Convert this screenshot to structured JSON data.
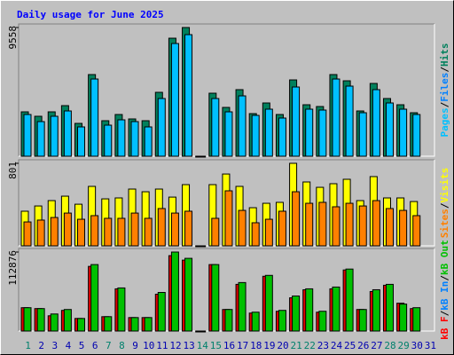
{
  "title": "Daily usage for June 2025",
  "chart_data": [
    {
      "type": "bar",
      "ylim": [
        0,
        9558
      ],
      "yticks": [
        9558
      ],
      "legend": [
        {
          "name": "Pages",
          "color": "#00c0ff"
        },
        {
          "name": "Files",
          "color": "#0080ff"
        },
        {
          "name": "Hits",
          "color": "#00805c"
        }
      ],
      "legend_separator": "/",
      "series": [
        {
          "color": "#00805c",
          "values": [
            3295,
            2966,
            3295,
            3756,
            2438,
            6063,
            2636,
            3097,
            2768,
            2636,
            4745,
            8765,
            9558,
            0,
            4679,
            3624,
            4943,
            3163,
            3954,
            3097,
            5667,
            3822,
            3690,
            6063,
            5601,
            3361,
            5404,
            4284,
            3822,
            3229,
            null
          ]
        },
        {
          "color": "#00c0ff",
          "values": [
            3097,
            2570,
            2966,
            3361,
            2175,
            5733,
            2306,
            2702,
            2570,
            2175,
            4284,
            8370,
            9028,
            0,
            4284,
            3295,
            4481,
            3031,
            3493,
            2834,
            5140,
            3493,
            3427,
            5733,
            5206,
            3229,
            4943,
            3954,
            3493,
            3097,
            null
          ]
        }
      ]
    },
    {
      "type": "bar",
      "ylim": [
        0,
        801
      ],
      "yticks": [
        801
      ],
      "legend": [
        {
          "name": "Sites",
          "color": "#ff8000"
        },
        {
          "name": "Visits",
          "color": "#ffff00"
        }
      ],
      "legend_separator": "/",
      "series": [
        {
          "color": "#ffff00",
          "values": [
            336,
            387,
            439,
            482,
            404,
            577,
            456,
            465,
            551,
            525,
            551,
            473,
            594,
            0,
            594,
            697,
            577,
            370,
            413,
            422,
            801,
            620,
            568,
            603,
            646,
            439,
            672,
            465,
            465,
            430,
            null
          ]
        },
        {
          "color": "#ff8000",
          "values": [
            232,
            250,
            275,
            318,
            258,
            293,
            267,
            267,
            318,
            267,
            362,
            318,
            336,
            0,
            267,
            534,
            344,
            224,
            258,
            336,
            525,
            413,
            422,
            379,
            413,
            387,
            439,
            362,
            344,
            293,
            null
          ]
        }
      ]
    },
    {
      "type": "bar",
      "ylim": [
        0,
        112876
      ],
      "yticks": [
        112876
      ],
      "legend": [
        {
          "name": "kB F",
          "color": "#ff0000"
        },
        {
          "name": "kB In",
          "color": "#0080ff"
        },
        {
          "name": "kB Out",
          "color": "#00c000"
        }
      ],
      "legend_separator": "/",
      "series": [
        {
          "color": "#e00000",
          "values": [
            33358,
            32075,
            21811,
            29509,
            17962,
            92406,
            20528,
            60300,
            19245,
            19245,
            52603,
            107744,
            101329,
            0,
            94972,
            30792,
            66715,
            25660,
            78262,
            28226,
            47471,
            58990,
            26943,
            60300,
            87274,
            30792,
            56452,
            65432,
            39773,
            32075,
            null
          ]
        },
        {
          "color": "#00c000",
          "values": [
            33358,
            32075,
            24377,
            30792,
            17962,
            94972,
            20528,
            61583,
            19245,
            19245,
            55169,
            112876,
            103895,
            0,
            94972,
            30792,
            69281,
            26943,
            79545,
            29509,
            50037,
            60300,
            28226,
            62866,
            88557,
            30792,
            59017,
            66715,
            38490,
            33358,
            null
          ]
        }
      ],
      "categories": [
        "1",
        "2",
        "3",
        "4",
        "5",
        "6",
        "7",
        "8",
        "9",
        "10",
        "11",
        "12",
        "13",
        "14",
        "15",
        "16",
        "17",
        "18",
        "19",
        "20",
        "21",
        "22",
        "23",
        "24",
        "25",
        "26",
        "27",
        "28",
        "29",
        "30",
        "31"
      ],
      "category_color": "#0000b0",
      "highlight_color": "#00806c",
      "highlight": [
        0,
        6,
        7,
        13,
        14,
        20,
        21,
        27,
        28
      ]
    }
  ]
}
